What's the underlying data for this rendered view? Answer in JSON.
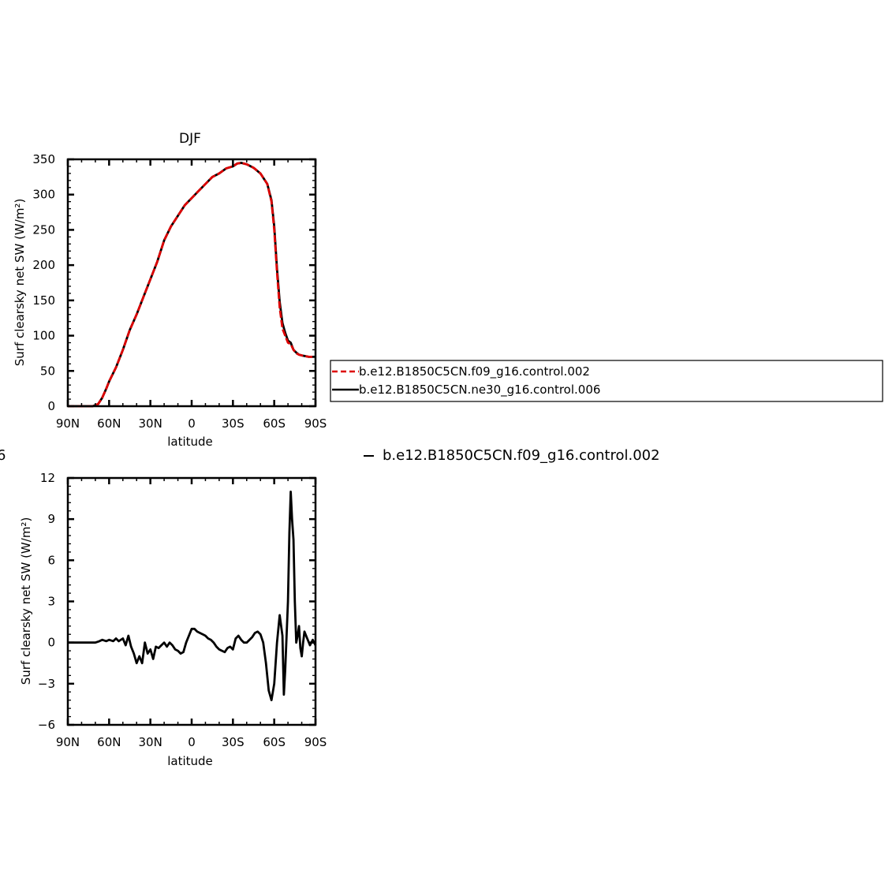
{
  "chart_data": [
    {
      "type": "line",
      "title": "DJF",
      "xlabel": "latitude",
      "ylabel": "Surf clearsky net SW (W/m²)",
      "xlim": [
        90,
        -90
      ],
      "ylim": [
        0,
        350
      ],
      "x_ticks": [
        {
          "value": 90,
          "label": "90N"
        },
        {
          "value": 60,
          "label": "60N"
        },
        {
          "value": 30,
          "label": "30N"
        },
        {
          "value": 0,
          "label": "0"
        },
        {
          "value": -30,
          "label": "30S"
        },
        {
          "value": -60,
          "label": "60S"
        },
        {
          "value": -90,
          "label": "90S"
        }
      ],
      "y_ticks": [
        0,
        50,
        100,
        150,
        200,
        250,
        300,
        350
      ],
      "legend_placement": "right",
      "series": [
        {
          "name": "b.e12.B1850C5CN.f09_g16.control.002",
          "color": "#dd0000",
          "style": "dashed",
          "x": [
            90,
            80,
            72,
            68,
            65,
            62,
            60,
            55,
            50,
            45,
            40,
            35,
            30,
            25,
            20,
            15,
            10,
            5,
            0,
            -5,
            -10,
            -15,
            -20,
            -25,
            -30,
            -33,
            -36,
            -40,
            -45,
            -50,
            -55,
            -58,
            -60,
            -62,
            -64,
            -66,
            -68,
            -70,
            -72,
            -74,
            -76,
            -78,
            -80,
            -85,
            -90
          ],
          "y": [
            0,
            0,
            0,
            3,
            12,
            25,
            35,
            55,
            80,
            108,
            130,
            155,
            180,
            205,
            235,
            255,
            270,
            285,
            295,
            305,
            315,
            325,
            330,
            337,
            340,
            344,
            345,
            343,
            338,
            330,
            315,
            290,
            250,
            190,
            140,
            110,
            100,
            90,
            88,
            80,
            75,
            73,
            72,
            70,
            70
          ]
        },
        {
          "name": "b.e12.B1850C5CN.ne30_g16.control.006",
          "color": "#000000",
          "style": "solid",
          "x": [
            90,
            80,
            72,
            68,
            65,
            62,
            60,
            55,
            50,
            45,
            40,
            35,
            30,
            25,
            20,
            15,
            10,
            5,
            0,
            -5,
            -10,
            -15,
            -20,
            -25,
            -30,
            -33,
            -36,
            -40,
            -45,
            -50,
            -55,
            -58,
            -60,
            -62,
            -64,
            -66,
            -68,
            -70,
            -72,
            -74,
            -76,
            -78,
            -80,
            -85,
            -90
          ],
          "y": [
            0,
            0,
            0,
            3,
            12,
            25,
            35,
            55,
            80,
            108,
            130,
            155,
            180,
            205,
            235,
            255,
            270,
            285,
            295,
            305,
            315,
            325,
            330,
            337,
            340,
            344,
            345,
            343,
            338,
            330,
            315,
            292,
            255,
            195,
            148,
            118,
            104,
            93,
            90,
            80,
            76,
            73,
            72,
            70,
            70
          ]
        }
      ]
    },
    {
      "type": "line",
      "title": "",
      "xlabel": "latitude",
      "ylabel": "Surf clearsky net SW (W/m²)",
      "xlim": [
        90,
        -90
      ],
      "ylim": [
        -6,
        12
      ],
      "x_ticks": [
        {
          "value": 90,
          "label": "90N"
        },
        {
          "value": 60,
          "label": "60N"
        },
        {
          "value": 30,
          "label": "30N"
        },
        {
          "value": 0,
          "label": "0"
        },
        {
          "value": -30,
          "label": "30S"
        },
        {
          "value": -60,
          "label": "60S"
        },
        {
          "value": -90,
          "label": "90S"
        }
      ],
      "y_ticks": [
        -6,
        -3,
        0,
        3,
        6,
        9,
        12
      ],
      "series": [
        {
          "color": "#000000",
          "style": "solid",
          "x": [
            90,
            80,
            70,
            67,
            65,
            62,
            60,
            57,
            55,
            53,
            50,
            48,
            46,
            44,
            42,
            40,
            38,
            36,
            34,
            32,
            30,
            28,
            26,
            24,
            22,
            20,
            18,
            16,
            14,
            12,
            10,
            8,
            6,
            4,
            2,
            0,
            -2,
            -4,
            -6,
            -8,
            -10,
            -12,
            -14,
            -16,
            -18,
            -20,
            -22,
            -24,
            -26,
            -28,
            -30,
            -32,
            -34,
            -36,
            -38,
            -40,
            -42,
            -44,
            -46,
            -48,
            -50,
            -52,
            -54,
            -56,
            -58,
            -60,
            -62,
            -64,
            -66,
            -67,
            -68,
            -70,
            -71,
            -72,
            -73,
            -74,
            -75,
            -76,
            -77,
            -78,
            -79,
            -80,
            -81,
            -82,
            -84,
            -86,
            -88,
            -90
          ],
          "y": [
            0,
            0,
            0,
            0.1,
            0.2,
            0.1,
            0.2,
            0.1,
            0.3,
            0.1,
            0.3,
            -0.2,
            0.5,
            -0.3,
            -0.8,
            -1.5,
            -1.0,
            -1.5,
            0.0,
            -0.8,
            -0.5,
            -1.2,
            -0.3,
            -0.4,
            -0.2,
            0.0,
            -0.3,
            0.0,
            -0.2,
            -0.5,
            -0.6,
            -0.8,
            -0.7,
            0.0,
            0.5,
            1.0,
            1.0,
            0.8,
            0.7,
            0.6,
            0.5,
            0.3,
            0.2,
            0.0,
            -0.3,
            -0.5,
            -0.6,
            -0.7,
            -0.4,
            -0.3,
            -0.5,
            0.3,
            0.5,
            0.2,
            0.0,
            0.0,
            0.2,
            0.4,
            0.7,
            0.8,
            0.6,
            0.0,
            -1.5,
            -3.5,
            -4.2,
            -3.0,
            0.0,
            2.0,
            0.5,
            -3.8,
            -2.0,
            3.0,
            8.0,
            11.0,
            9.0,
            7.5,
            3.0,
            0.0,
            0.5,
            1.2,
            -0.4,
            -1.0,
            0.0,
            0.8,
            0.3,
            -0.2,
            0.2,
            -0.2
          ]
        }
      ]
    }
  ],
  "legend": {
    "entries": [
      {
        "label": "b.e12.B1850C5CN.f09_g16.control.002",
        "color": "#dd0000",
        "style": "dashed"
      },
      {
        "label": "b.e12.B1850C5CN.ne30_g16.control.006",
        "color": "#000000",
        "style": "solid"
      }
    ]
  },
  "second_legend": {
    "label": "b.e12.B1850C5CN.f09_g16.control.002",
    "left_fragment": "6"
  }
}
